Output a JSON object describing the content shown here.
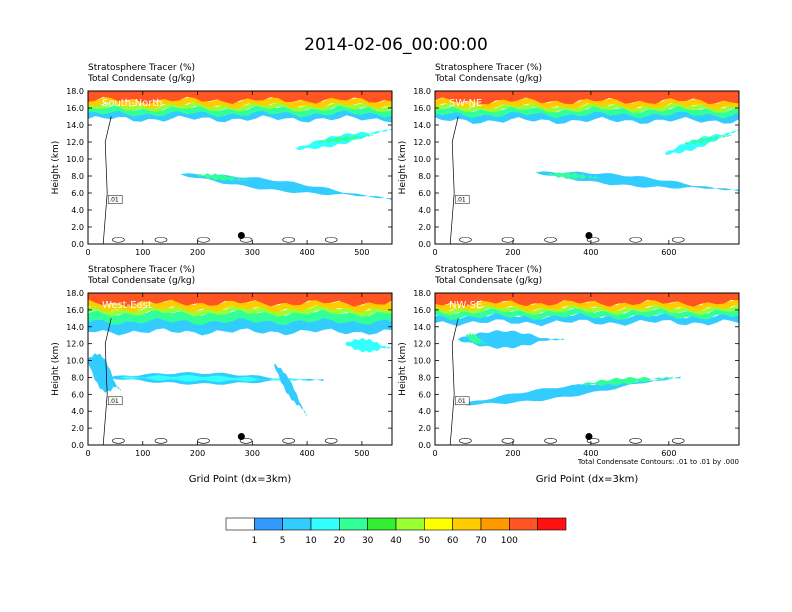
{
  "title": "2014-02-06_00:00:00",
  "left_titles": [
    "Stratosphere Tracer   (%)",
    "Total Condensate   (g/kg)"
  ],
  "ylabel": "Height (km)",
  "xlabel": "Grid Point (dx=3km)",
  "contour_note": "Total Condensate Contours: .01 to .01 by .000",
  "contour_label": ".01",
  "colorbar": {
    "levels": [
      "1",
      "5",
      "10",
      "20",
      "30",
      "40",
      "50",
      "60",
      "70",
      "100"
    ],
    "colors": [
      "#ffffff",
      "#3399ff",
      "#33ccff",
      "#33ffff",
      "#33ff99",
      "#33ee33",
      "#99ff33",
      "#ffff00",
      "#ffcc00",
      "#ff9900",
      "#ff5522",
      "#ff1111"
    ]
  },
  "chart_data": [
    {
      "type": "heatmap",
      "panel": "South-North",
      "xlabel": "",
      "ylabel": "Height (km)",
      "xlim": [
        0,
        555
      ],
      "ylim": [
        0,
        18
      ],
      "xticks": [
        "0",
        "100",
        "200",
        "300",
        "400",
        "500"
      ],
      "yticks": [
        "0.0",
        "2.0",
        "4.0",
        "6.0",
        "8.0",
        "10.0",
        "12.0",
        "14.0",
        "16.0",
        "18.0"
      ],
      "marker_x": 280,
      "marker_y": 1.0,
      "bands": [
        {
          "level": 5,
          "x0": 0,
          "x1": 555,
          "y0": 14.7,
          "y1": 15.5
        },
        {
          "level": 20,
          "x0": 0,
          "x1": 555,
          "y0": 15.3,
          "y1": 16.0
        },
        {
          "level": 40,
          "x0": 0,
          "x1": 555,
          "y0": 15.9,
          "y1": 16.4
        },
        {
          "level": 60,
          "x0": 0,
          "x1": 555,
          "y0": 16.3,
          "y1": 17.0
        },
        {
          "level": 100,
          "x0": 0,
          "x1": 555,
          "y0": 16.9,
          "y1": 18.0
        }
      ],
      "blobs": [
        {
          "x0": 170,
          "x1": 555,
          "yc0": 8.2,
          "yc1": 5.3,
          "level": 5,
          "thick": 1.2
        },
        {
          "x0": 200,
          "x1": 290,
          "yc0": 8.1,
          "yc1": 7.5,
          "level": 20,
          "thick": 0.6
        },
        {
          "x0": 380,
          "x1": 555,
          "yc0": 11.2,
          "yc1": 13.5,
          "level": 10,
          "thick": 1.1
        },
        {
          "x0": 420,
          "x1": 520,
          "yc0": 12.0,
          "yc1": 12.8,
          "level": 20,
          "thick": 0.5
        }
      ]
    },
    {
      "type": "heatmap",
      "panel": "SW-NE",
      "xlabel": "",
      "ylabel": "Height (km)",
      "xlim": [
        0,
        780
      ],
      "ylim": [
        0,
        18
      ],
      "xticks": [
        "0",
        "200",
        "400",
        "600"
      ],
      "yticks": [
        "0.0",
        "2.0",
        "4.0",
        "6.0",
        "8.0",
        "10.0",
        "12.0",
        "14.0",
        "16.0",
        "18.0"
      ],
      "marker_x": 395,
      "marker_y": 1.0,
      "bands": [
        {
          "level": 5,
          "x0": 0,
          "x1": 780,
          "y0": 14.5,
          "y1": 15.4
        },
        {
          "level": 20,
          "x0": 0,
          "x1": 780,
          "y0": 15.2,
          "y1": 15.9
        },
        {
          "level": 40,
          "x0": 0,
          "x1": 780,
          "y0": 15.8,
          "y1": 16.3
        },
        {
          "level": 60,
          "x0": 0,
          "x1": 780,
          "y0": 16.2,
          "y1": 16.9
        },
        {
          "level": 100,
          "x0": 0,
          "x1": 780,
          "y0": 16.8,
          "y1": 18.0
        }
      ],
      "blobs": [
        {
          "x0": 260,
          "x1": 780,
          "yc0": 8.4,
          "yc1": 6.3,
          "level": 5,
          "thick": 1.2
        },
        {
          "x0": 290,
          "x1": 420,
          "yc0": 8.2,
          "yc1": 7.8,
          "level": 20,
          "thick": 0.6
        },
        {
          "x0": 590,
          "x1": 780,
          "yc0": 10.6,
          "yc1": 13.4,
          "level": 10,
          "thick": 1.1
        },
        {
          "x0": 640,
          "x1": 760,
          "yc0": 11.8,
          "yc1": 12.8,
          "level": 20,
          "thick": 0.4
        }
      ]
    },
    {
      "type": "heatmap",
      "panel": "West-East",
      "xlabel": "Grid Point (dx=3km)",
      "ylabel": "Height (km)",
      "xlim": [
        0,
        555
      ],
      "ylim": [
        0,
        18
      ],
      "xticks": [
        "0",
        "100",
        "200",
        "300",
        "400",
        "500"
      ],
      "yticks": [
        "0.0",
        "2.0",
        "4.0",
        "6.0",
        "8.0",
        "10.0",
        "12.0",
        "14.0",
        "16.0",
        "18.0"
      ],
      "marker_x": 280,
      "marker_y": 1.0,
      "bands": [
        {
          "level": 5,
          "x0": 0,
          "x1": 555,
          "y0": 13.4,
          "y1": 14.9
        },
        {
          "level": 20,
          "x0": 0,
          "x1": 555,
          "y0": 14.6,
          "y1": 15.7
        },
        {
          "level": 40,
          "x0": 0,
          "x1": 555,
          "y0": 15.6,
          "y1": 16.2
        },
        {
          "level": 60,
          "x0": 0,
          "x1": 555,
          "y0": 16.1,
          "y1": 16.9
        },
        {
          "level": 100,
          "x0": 0,
          "x1": 555,
          "y0": 16.8,
          "y1": 18.0
        }
      ],
      "blobs": [
        {
          "x0": 40,
          "x1": 430,
          "yc0": 8.0,
          "yc1": 7.7,
          "level": 5,
          "thick": 1.3
        },
        {
          "x0": 60,
          "x1": 400,
          "yc0": 8.0,
          "yc1": 7.7,
          "level": 10,
          "thick": 0.6
        },
        {
          "x0": 0,
          "x1": 60,
          "yc0": 10.0,
          "yc1": 6.5,
          "level": 5,
          "thick": 4.0
        },
        {
          "x0": 340,
          "x1": 400,
          "yc0": 9.5,
          "yc1": 3.5,
          "level": 5,
          "thick": 2.0
        },
        {
          "x0": 470,
          "x1": 555,
          "yc0": 12.0,
          "yc1": 11.5,
          "level": 10,
          "thick": 1.5
        }
      ]
    },
    {
      "type": "heatmap",
      "panel": "NW-SE",
      "xlabel": "Grid Point (dx=3km)",
      "ylabel": "Height (km)",
      "xlim": [
        0,
        780
      ],
      "ylim": [
        0,
        18
      ],
      "xticks": [
        "0",
        "200",
        "400",
        "600"
      ],
      "yticks": [
        "0.0",
        "2.0",
        "4.0",
        "6.0",
        "8.0",
        "10.0",
        "12.0",
        "14.0",
        "16.0",
        "18.0"
      ],
      "marker_x": 395,
      "marker_y": 1.0,
      "bands": [
        {
          "level": 5,
          "x0": 0,
          "x1": 780,
          "y0": 14.5,
          "y1": 15.3
        },
        {
          "level": 20,
          "x0": 0,
          "x1": 780,
          "y0": 15.2,
          "y1": 15.9
        },
        {
          "level": 40,
          "x0": 0,
          "x1": 780,
          "y0": 15.8,
          "y1": 16.3
        },
        {
          "level": 60,
          "x0": 0,
          "x1": 780,
          "y0": 16.2,
          "y1": 16.9
        },
        {
          "level": 100,
          "x0": 0,
          "x1": 780,
          "y0": 16.8,
          "y1": 18.0
        }
      ],
      "blobs": [
        {
          "x0": 60,
          "x1": 330,
          "yc0": 12.5,
          "yc1": 12.5,
          "level": 5,
          "thick": 2.0
        },
        {
          "x0": 80,
          "x1": 130,
          "yc0": 13.0,
          "yc1": 12.0,
          "level": 20,
          "thick": 1.0
        },
        {
          "x0": 70,
          "x1": 630,
          "yc0": 4.8,
          "yc1": 8.0,
          "level": 5,
          "thick": 1.3
        },
        {
          "x0": 380,
          "x1": 610,
          "yc0": 7.2,
          "yc1": 8.0,
          "level": 20,
          "thick": 0.7
        }
      ]
    }
  ]
}
